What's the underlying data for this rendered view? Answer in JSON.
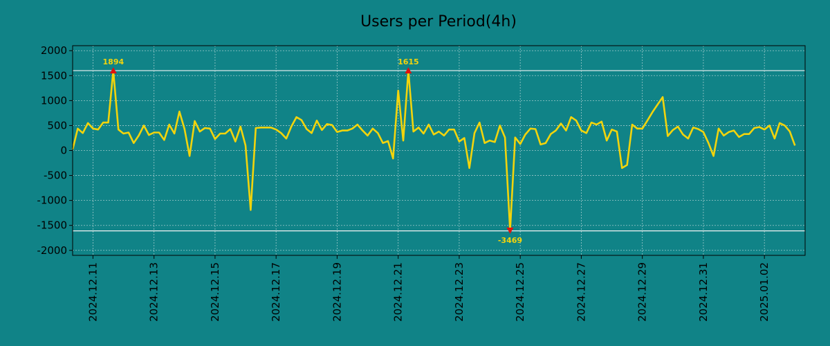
{
  "colors": {
    "background": "#108387",
    "line": "#f2d40c",
    "marker": "#e01010",
    "reference_line": "#f4f4f4",
    "grid": "#9fc9cb",
    "annotation_text": "#f2d40c",
    "axis": "#000000"
  },
  "chart_data": {
    "type": "line",
    "title": "Users per Period(4h)",
    "xlabel": "",
    "ylabel": "",
    "ylim": [
      -2100,
      2100
    ],
    "yticks": [
      2000,
      1500,
      1000,
      500,
      0,
      -500,
      -1000,
      -1500,
      -2000
    ],
    "ytick_labels": [
      "2000",
      "1500",
      "1000",
      "500",
      "0",
      "-500",
      "-1000",
      "-1500",
      "-2000"
    ],
    "xlim_index": [
      0,
      144
    ],
    "xticks": [
      {
        "index": 4,
        "label": "2024.12.11"
      },
      {
        "index": 16,
        "label": "2024.12.13"
      },
      {
        "index": 28,
        "label": "2024.12.15"
      },
      {
        "index": 40,
        "label": "2024.12.17"
      },
      {
        "index": 52,
        "label": "2024.12.19"
      },
      {
        "index": 64,
        "label": "2024.12.21"
      },
      {
        "index": 76,
        "label": "2024.12.23"
      },
      {
        "index": 88,
        "label": "2024.12.25"
      },
      {
        "index": 100,
        "label": "2024.12.27"
      },
      {
        "index": 112,
        "label": "2024.12.29"
      },
      {
        "index": 124,
        "label": "2024.12.31"
      },
      {
        "index": 136,
        "label": "2025.01.02"
      }
    ],
    "grid": true,
    "reference_lines": [
      1600,
      -1610
    ],
    "series": [
      {
        "name": "Users per Period(4h)",
        "x_start": "2024.12.10 12:00",
        "interval_hours": 4,
        "values": [
          20,
          440,
          350,
          550,
          440,
          420,
          560,
          560,
          1600,
          420,
          340,
          360,
          150,
          300,
          500,
          310,
          360,
          360,
          210,
          520,
          340,
          780,
          430,
          -110,
          590,
          380,
          450,
          440,
          230,
          340,
          340,
          430,
          180,
          480,
          100,
          -1190,
          450,
          460,
          460,
          460,
          420,
          350,
          240,
          480,
          670,
          610,
          430,
          350,
          600,
          410,
          530,
          510,
          370,
          400,
          400,
          440,
          520,
          400,
          300,
          440,
          350,
          150,
          190,
          -160,
          1200,
          200,
          1600,
          380,
          460,
          340,
          520,
          320,
          380,
          300,
          420,
          420,
          180,
          250,
          -350,
          350,
          560,
          150,
          200,
          170,
          500,
          260,
          -1600,
          260,
          130,
          320,
          440,
          430,
          120,
          150,
          330,
          400,
          540,
          400,
          670,
          600,
          400,
          350,
          560,
          520,
          580,
          200,
          420,
          380,
          -350,
          -290,
          520,
          440,
          440,
          600,
          770,
          920,
          1070,
          290,
          410,
          480,
          320,
          240,
          460,
          430,
          370,
          150,
          -110,
          440,
          300,
          370,
          400,
          270,
          330,
          330,
          450,
          470,
          420,
          500,
          240,
          550,
          500,
          380,
          100
        ]
      }
    ],
    "annotations": [
      {
        "index": 8,
        "value": 1600,
        "label": "1894",
        "marker": "triangle-up",
        "label_position": "above"
      },
      {
        "index": 66,
        "value": 1600,
        "label": "1615",
        "marker": "triangle-up",
        "label_position": "above"
      },
      {
        "index": 86,
        "value": -1600,
        "label": "-3469",
        "marker": "triangle-down",
        "label_position": "below"
      }
    ]
  }
}
